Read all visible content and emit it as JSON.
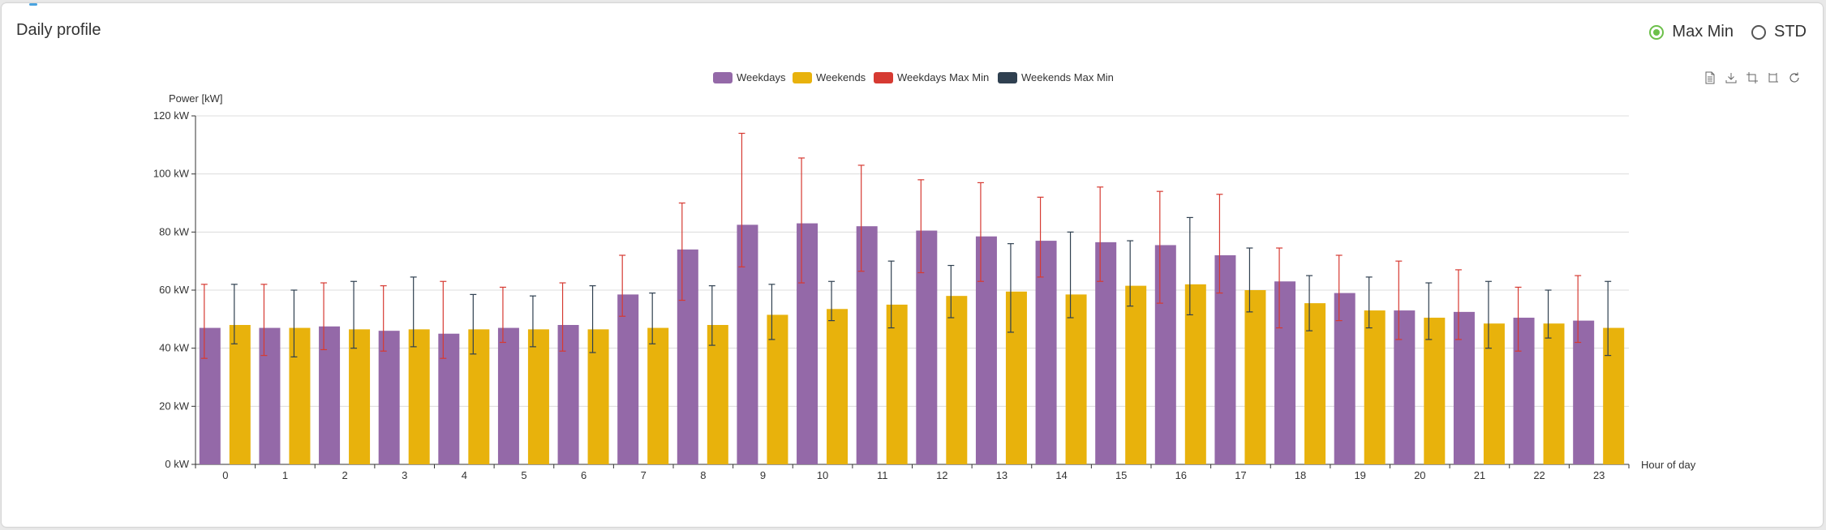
{
  "header": {
    "title": "Daily profile"
  },
  "toggle": {
    "options": [
      {
        "label": "Max Min",
        "selected": true
      },
      {
        "label": "STD",
        "selected": false
      }
    ]
  },
  "toolbox": {
    "icons": [
      "data-view-icon",
      "download-icon",
      "crop-icon",
      "crop-alt-icon",
      "refresh-icon"
    ]
  },
  "colors": {
    "weekdays": "#9469a8",
    "weekends": "#e8b20c",
    "weekdays_err": "#d63a32",
    "weekends_err": "#2f4050"
  },
  "chart_data": {
    "type": "bar",
    "title": "",
    "ylabel": "Power [kW]",
    "xlabel": "Hour of day",
    "ylim": [
      0,
      120
    ],
    "yticks": [
      "0 kW",
      "20 kW",
      "40 kW",
      "60 kW",
      "80 kW",
      "100 kW",
      "120 kW"
    ],
    "categories": [
      "0",
      "1",
      "2",
      "3",
      "4",
      "5",
      "6",
      "7",
      "8",
      "9",
      "10",
      "11",
      "12",
      "13",
      "14",
      "15",
      "16",
      "17",
      "18",
      "19",
      "20",
      "21",
      "22",
      "23"
    ],
    "legend": [
      "Weekdays",
      "Weekends",
      "Weekdays Max Min",
      "Weekends Max Min"
    ],
    "series": [
      {
        "name": "Weekdays",
        "values": [
          47,
          47,
          47.5,
          46,
          45,
          47,
          48,
          58.5,
          74,
          82.5,
          83,
          82,
          80.5,
          78.5,
          77,
          76.5,
          75.5,
          72,
          63,
          59,
          53,
          52.5,
          50.5,
          49.5
        ],
        "max": [
          62,
          62,
          62.5,
          61.5,
          63,
          61,
          62.5,
          72,
          90,
          114,
          105.5,
          103,
          98,
          97,
          92,
          95.5,
          94,
          93,
          74.5,
          72,
          70,
          67,
          61,
          65
        ],
        "min": [
          36.5,
          37.5,
          39.5,
          39,
          36.5,
          42,
          39,
          51,
          56.5,
          68,
          62.5,
          66.5,
          66,
          63,
          64.5,
          63,
          55.5,
          59,
          47,
          49.5,
          43,
          43,
          39,
          42
        ]
      },
      {
        "name": "Weekends",
        "values": [
          48,
          47,
          46.5,
          46.5,
          46.5,
          46.5,
          46.5,
          47,
          48,
          51.5,
          53.5,
          55,
          58,
          59.5,
          58.5,
          61.5,
          62,
          60,
          55.5,
          53,
          50.5,
          48.5,
          48.5,
          47
        ],
        "max": [
          62,
          60,
          63,
          64.5,
          58.5,
          58,
          61.5,
          59,
          61.5,
          62,
          63,
          70,
          68.5,
          76,
          80,
          77,
          85,
          74.5,
          65,
          64.5,
          62.5,
          63,
          60,
          63
        ],
        "min": [
          41.5,
          37,
          40,
          40.5,
          38,
          40.5,
          38.5,
          41.5,
          41,
          43,
          49.5,
          47,
          50.5,
          45.5,
          50.5,
          54.5,
          51.5,
          52.5,
          46,
          47,
          43,
          40,
          43.5,
          37.5
        ]
      }
    ]
  }
}
